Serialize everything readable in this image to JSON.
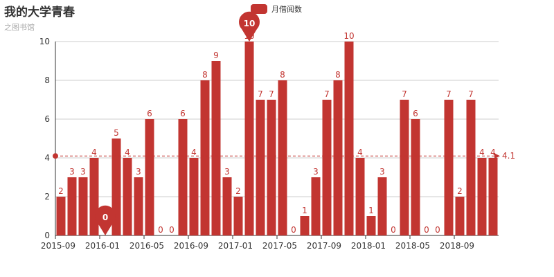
{
  "title": "我的大学青春",
  "subtitle": "之图书馆",
  "legend": {
    "label": "月借阅数"
  },
  "colors": {
    "bar": "#c23531",
    "axis": "#333333",
    "grid": "#cccccc"
  },
  "chart_data": {
    "type": "bar",
    "categories": [
      "2015-09",
      "2015-10",
      "2015-11",
      "2015-12",
      "2016-01",
      "2016-02",
      "2016-03",
      "2016-04",
      "2016-05",
      "2016-06",
      "2016-07",
      "2016-08",
      "2016-09",
      "2016-10",
      "2016-11",
      "2016-12",
      "2017-01",
      "2017-02",
      "2017-03",
      "2017-04",
      "2017-05",
      "2017-06",
      "2017-07",
      "2017-08",
      "2017-09",
      "2017-10",
      "2017-11",
      "2017-12",
      "2018-01",
      "2018-02",
      "2018-03",
      "2018-04",
      "2018-05",
      "2018-06",
      "2018-07",
      "2018-08",
      "2018-09",
      "2018-10",
      "2018-11",
      "2018-12"
    ],
    "x_tick_labels": [
      "2015-09",
      "2016-01",
      "2016-05",
      "2016-09",
      "2017-01",
      "2017-05",
      "2017-09",
      "2018-01",
      "2018-05",
      "2018-09"
    ],
    "series": [
      {
        "name": "月借阅数",
        "values": [
          2,
          3,
          3,
          4,
          0,
          5,
          4,
          3,
          6,
          0,
          0,
          6,
          4,
          8,
          9,
          3,
          2,
          10,
          7,
          7,
          8,
          0,
          1,
          3,
          7,
          8,
          10,
          4,
          1,
          3,
          0,
          7,
          6,
          0,
          0,
          7,
          2,
          7,
          4,
          4
        ]
      }
    ],
    "y_tick_labels": [
      "0",
      "2",
      "4",
      "6",
      "8",
      "10"
    ],
    "ylim": [
      0,
      10
    ],
    "mark_point": {
      "max_label": "10",
      "min_label": "0"
    },
    "mark_line": {
      "average_label": "4.1",
      "value": 4.1
    },
    "grid": true,
    "legend_position": "top"
  }
}
